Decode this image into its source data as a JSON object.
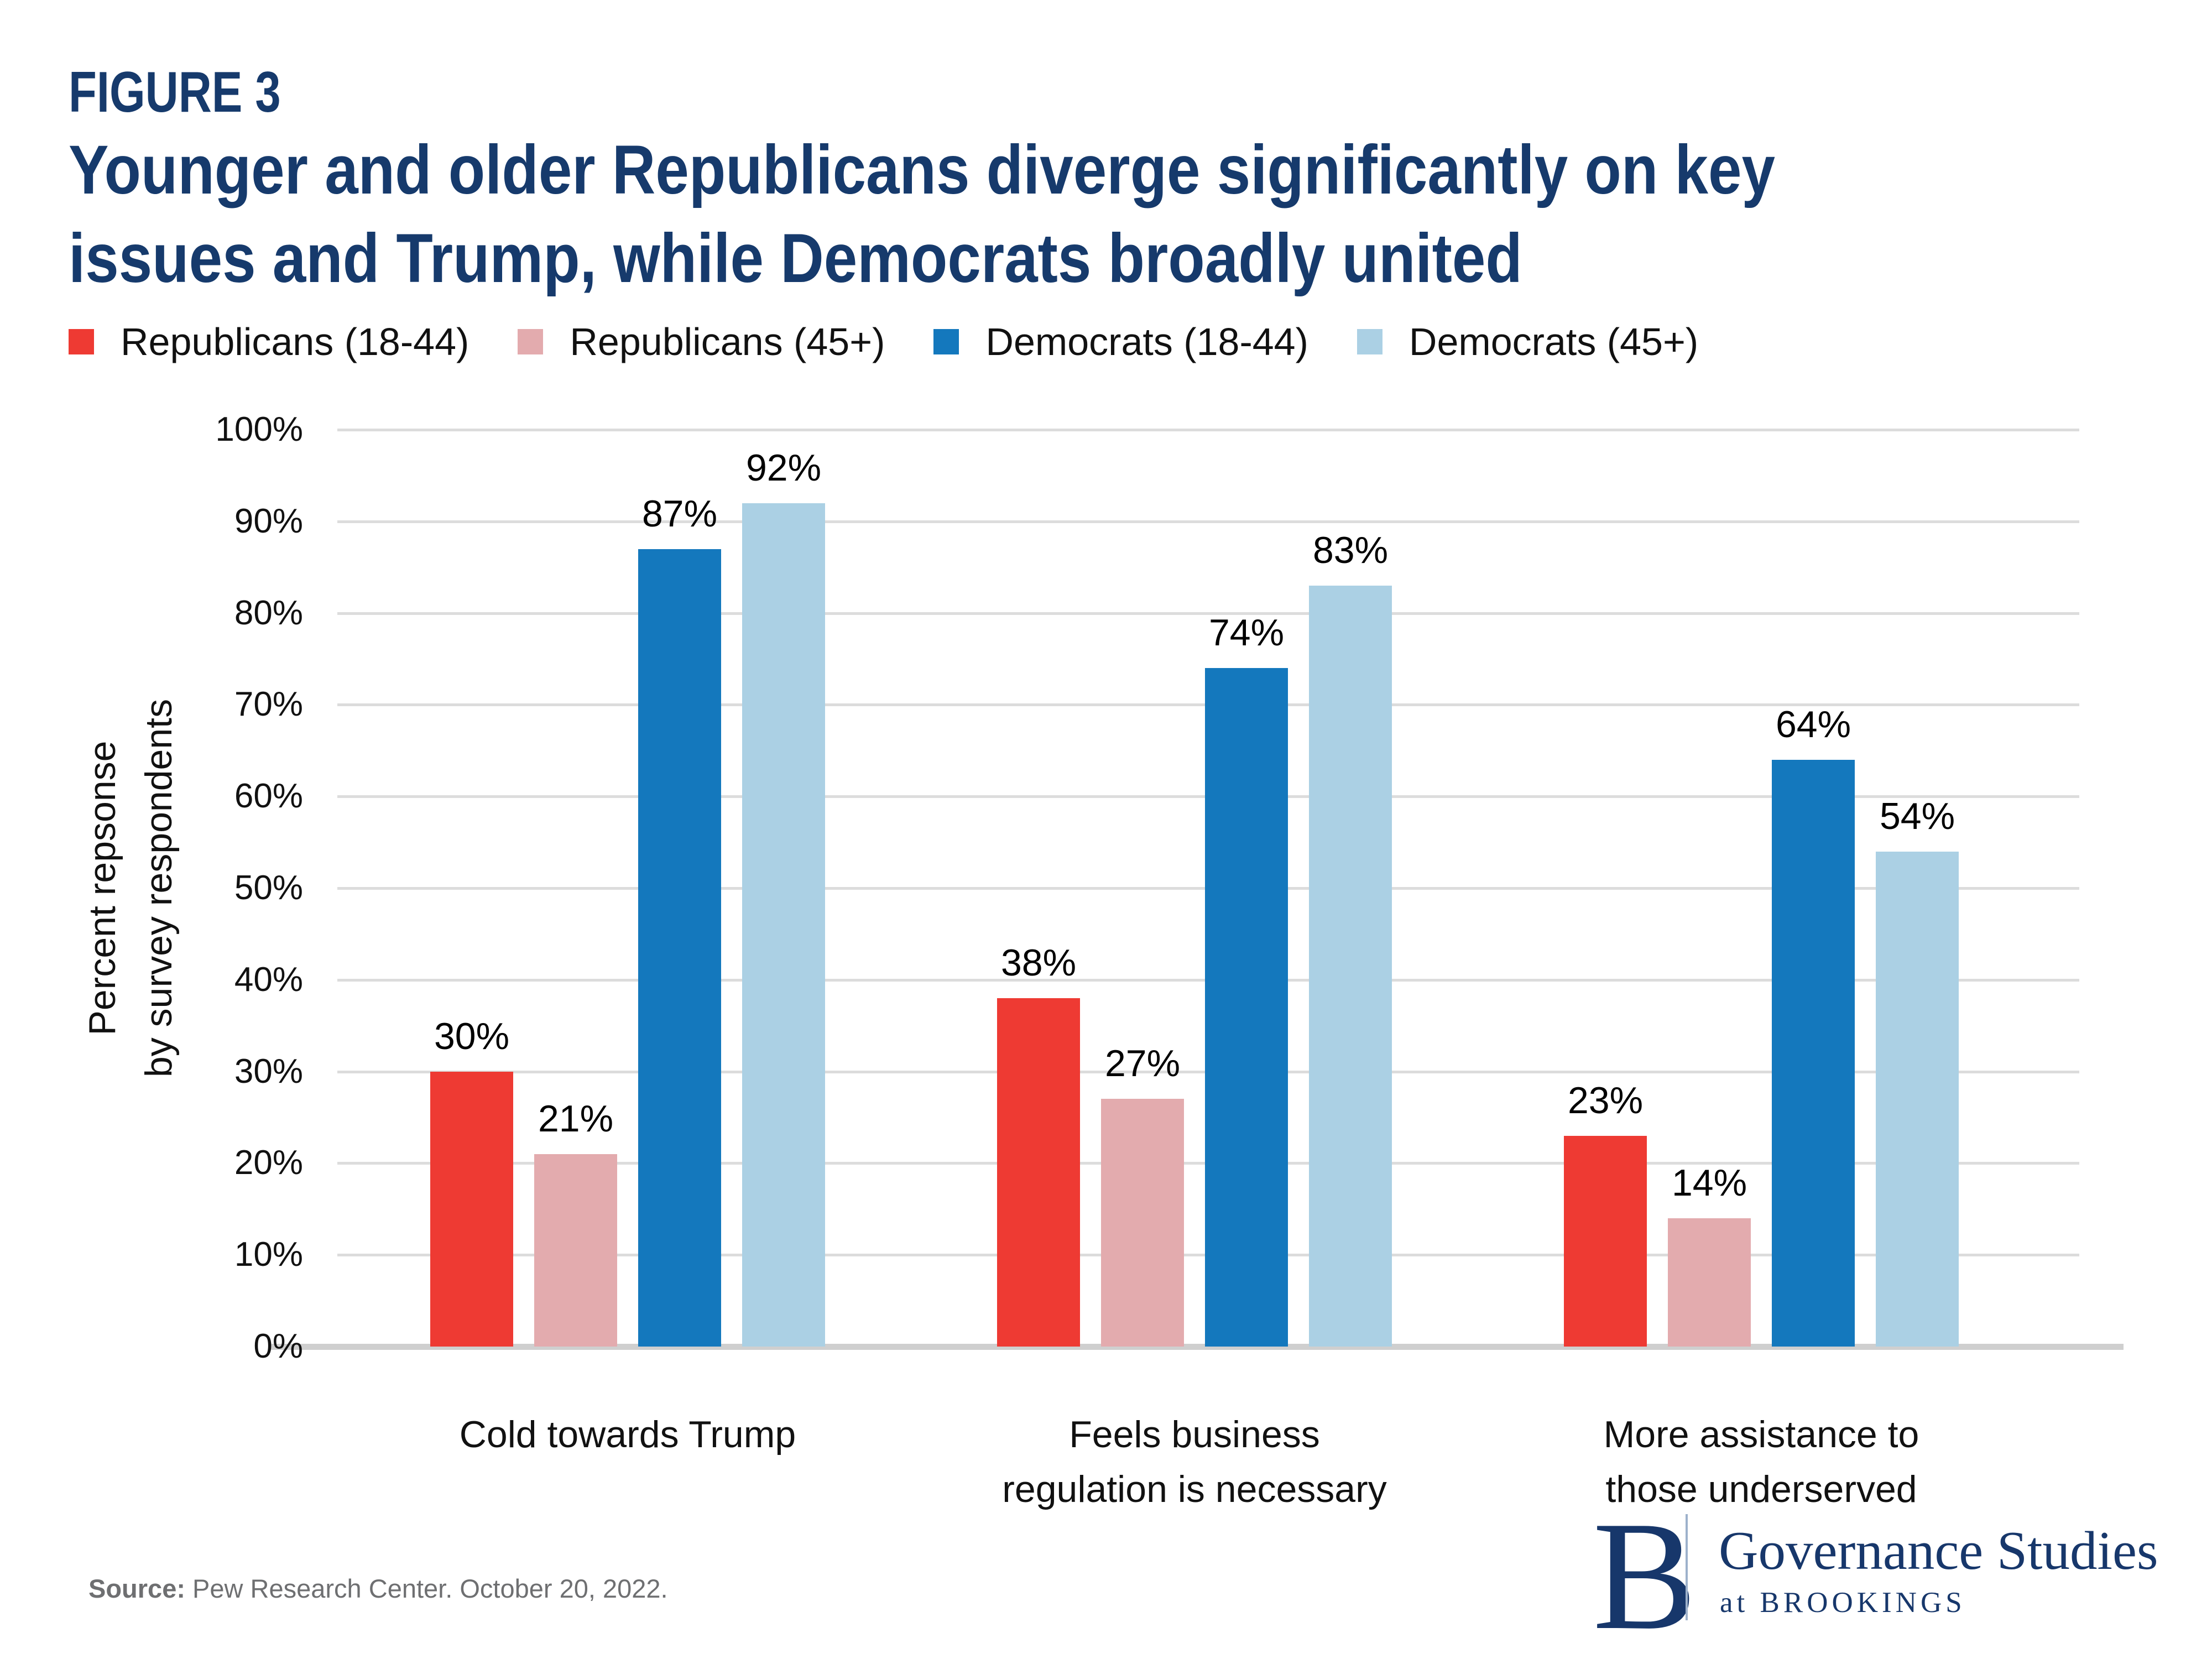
{
  "figure_label": "FIGURE 3",
  "title_lines": [
    "Younger and older Republicans diverge significantly on key",
    "issues and Trump, while Democrats broadly united"
  ],
  "chart_data": {
    "type": "bar",
    "categories": [
      "Cold towards Trump",
      "Feels business\nregulation is necessary",
      "More assistance to\nthose underserved"
    ],
    "series": [
      {
        "name": "Republicans (18-44)",
        "color": "#ee3a33",
        "values": [
          30,
          38,
          23
        ]
      },
      {
        "name": "Republicans (45+)",
        "color": "#e3abae",
        "values": [
          21,
          27,
          14
        ]
      },
      {
        "name": "Democrats (18-44)",
        "color": "#1478bd",
        "values": [
          87,
          74,
          64
        ]
      },
      {
        "name": "Democrats (45+)",
        "color": "#abd0e4",
        "values": [
          92,
          83,
          54
        ]
      }
    ],
    "value_label_format": "{v}%",
    "title": "Younger and older Republicans diverge significantly on key issues and Trump, while Democrats broadly united",
    "xlabel": "",
    "ylabel": "Percent repsonse\nby survey respondents",
    "ylim": [
      0,
      100
    ],
    "ytick_step": 10,
    "ytick_suffix": "%",
    "grid": true,
    "legend_position": "top"
  },
  "colors": {
    "navy": "#163a6c",
    "gridline": "#dcdcdc",
    "baseline": "#cfcfcf",
    "source_gray": "#6e6f71"
  },
  "source": {
    "label": "Source:",
    "text": " Pew Research Center. October 20, 2022."
  },
  "logo": {
    "b": "B",
    "name": "Governance Studies",
    "sub": "at BROOKINGS"
  }
}
